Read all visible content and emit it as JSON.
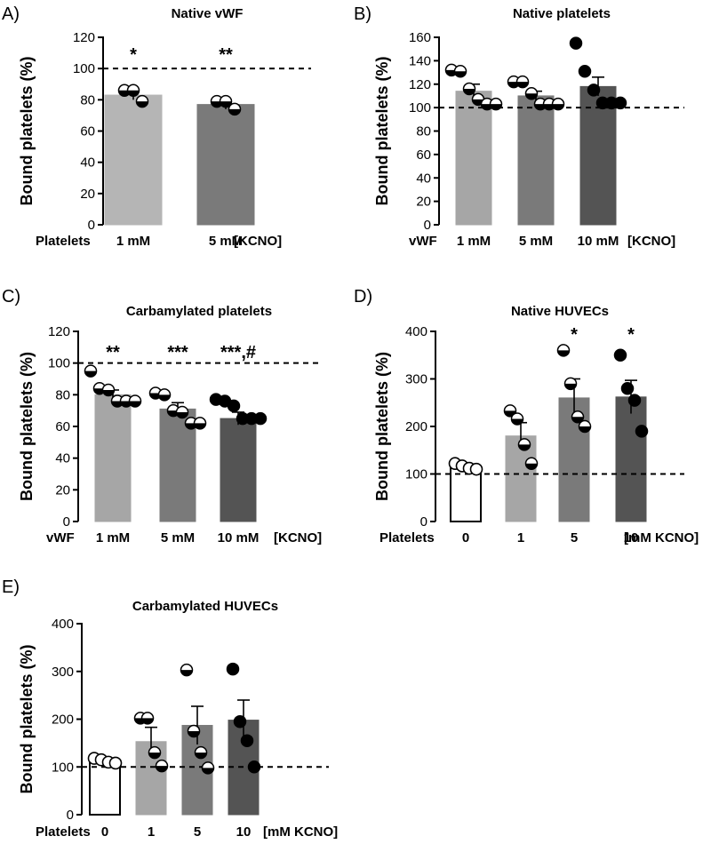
{
  "chart_data": [
    {
      "type": "bar",
      "panel": "A)",
      "title": "Native vWF",
      "ylabel": "Bound platelets (%)",
      "ylim": [
        0,
        120
      ],
      "yticks": [
        "0",
        "20",
        "40",
        "60",
        "80",
        "100",
        "120"
      ],
      "reference_line": 100,
      "row_label": "Platelets",
      "unit_label": "[KCNO]",
      "categories": [
        "1 mM",
        "5 mM"
      ],
      "values": [
        83,
        77
      ],
      "errors": [
        3,
        3
      ],
      "bar_colors": [
        "#b5b5b5",
        "#7a7a7a"
      ],
      "marker_style": [
        "half",
        "half"
      ],
      "points": [
        [
          86,
          86,
          79
        ],
        [
          79,
          79,
          74
        ]
      ],
      "significance": [
        "*",
        "**"
      ]
    },
    {
      "type": "bar",
      "panel": "B)",
      "title": "Native platelets",
      "ylabel": "Bound platelets (%)",
      "ylim": [
        0,
        160
      ],
      "yticks": [
        "0",
        "20",
        "40",
        "60",
        "80",
        "100",
        "120",
        "140",
        "160"
      ],
      "reference_line": 100,
      "row_label": "vWF",
      "unit_label": "[KCNO]",
      "categories": [
        "1 mM",
        "5 mM",
        "10 mM"
      ],
      "values": [
        114,
        110,
        118
      ],
      "errors": [
        6,
        4,
        8
      ],
      "bar_colors": [
        "#a6a6a6",
        "#7a7a7a",
        "#545454"
      ],
      "marker_style": [
        "half",
        "half",
        "filled"
      ],
      "points": [
        [
          132,
          131,
          116,
          107,
          103,
          103
        ],
        [
          122,
          122,
          112,
          103,
          103,
          103
        ],
        [
          155,
          131,
          115,
          104,
          104,
          104
        ]
      ],
      "significance": [
        "",
        "",
        ""
      ]
    },
    {
      "type": "bar",
      "panel": "C)",
      "title": "Carbamylated platelets",
      "ylabel": "Bound platelets (%)",
      "ylim": [
        0,
        120
      ],
      "yticks": [
        "0",
        "20",
        "40",
        "60",
        "80",
        "100",
        "120"
      ],
      "reference_line": 100,
      "row_label": "vWF",
      "unit_label": "[KCNO]",
      "categories": [
        "1 mM",
        "5 mM",
        "10 mM"
      ],
      "values": [
        80,
        71,
        65
      ],
      "errors": [
        3,
        4,
        4
      ],
      "bar_colors": [
        "#a6a6a6",
        "#7a7a7a",
        "#545454"
      ],
      "marker_style": [
        "half",
        "half",
        "filled"
      ],
      "points": [
        [
          95,
          84,
          83,
          76,
          76,
          76
        ],
        [
          81,
          80,
          70,
          69,
          62,
          62
        ],
        [
          77,
          76,
          73,
          65,
          65,
          65
        ]
      ],
      "significance": [
        "**",
        "***",
        "***,#"
      ]
    },
    {
      "type": "bar",
      "panel": "D)",
      "title": "Native HUVECs",
      "ylabel": "Bound platelets (%)",
      "ylim": [
        0,
        400
      ],
      "yticks": [
        "0",
        "100",
        "200",
        "300",
        "400"
      ],
      "reference_line": 100,
      "row_label": "Platelets",
      "unit_label": "[mM KCNO]",
      "categories": [
        "0",
        "1",
        "5",
        "10"
      ],
      "values": [
        116,
        180,
        260,
        262
      ],
      "errors": [
        4,
        28,
        40,
        35
      ],
      "bar_colors": [
        "#ffffff",
        "#a6a6a6",
        "#7a7a7a",
        "#545454"
      ],
      "marker_style": [
        "open",
        "half",
        "half",
        "filled"
      ],
      "points": [
        [
          122,
          117,
          112,
          110
        ],
        [
          233,
          216,
          162,
          122
        ],
        [
          360,
          290,
          220,
          200
        ],
        [
          350,
          280,
          255,
          190
        ]
      ],
      "significance": [
        "",
        "",
        "*",
        "*"
      ]
    },
    {
      "type": "bar",
      "panel": "E)",
      "title": "Carbamylated HUVECs",
      "ylabel": "Bound platelets (%)",
      "ylim": [
        0,
        400
      ],
      "yticks": [
        "0",
        "100",
        "200",
        "300",
        "400"
      ],
      "reference_line": 100,
      "row_label": "Platelets",
      "unit_label": "[mM KCNO]",
      "categories": [
        "0",
        "1",
        "5",
        "10"
      ],
      "values": [
        113,
        153,
        187,
        198
      ],
      "errors": [
        5,
        30,
        40,
        42
      ],
      "bar_colors": [
        "#ffffff",
        "#a6a6a6",
        "#7a7a7a",
        "#545454"
      ],
      "marker_style": [
        "open",
        "half",
        "half",
        "filled"
      ],
      "points": [
        [
          118,
          115,
          110,
          108
        ],
        [
          202,
          202,
          130,
          102
        ],
        [
          303,
          175,
          130,
          98
        ],
        [
          305,
          195,
          155,
          100
        ]
      ],
      "significance": [
        "",
        "",
        "",
        ""
      ]
    }
  ]
}
